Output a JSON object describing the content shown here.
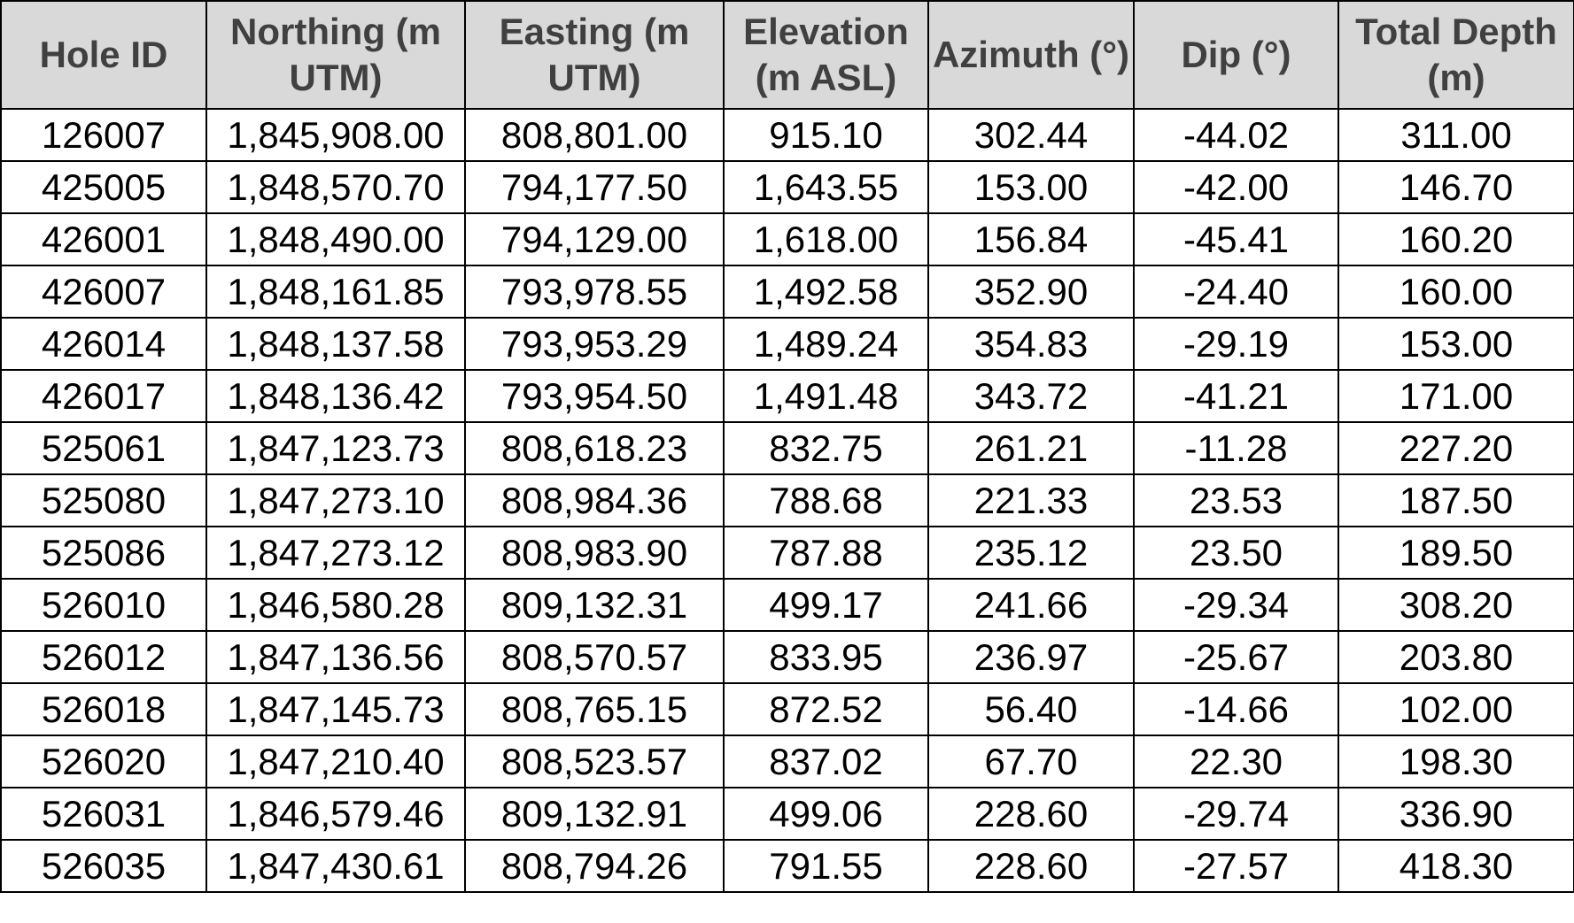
{
  "table": {
    "headers": [
      "Hole ID",
      "Northing (m UTM)",
      "Easting (m UTM)",
      "Elevation (m ASL)",
      "Azimuth (°)",
      "Dip (°)",
      "Total Depth (m)"
    ],
    "rows": [
      [
        "126007",
        "1,845,908.00",
        "808,801.00",
        "915.10",
        "302.44",
        "-44.02",
        "311.00"
      ],
      [
        "425005",
        "1,848,570.70",
        "794,177.50",
        "1,643.55",
        "153.00",
        "-42.00",
        "146.70"
      ],
      [
        "426001",
        "1,848,490.00",
        "794,129.00",
        "1,618.00",
        "156.84",
        "-45.41",
        "160.20"
      ],
      [
        "426007",
        "1,848,161.85",
        "793,978.55",
        "1,492.58",
        "352.90",
        "-24.40",
        "160.00"
      ],
      [
        "426014",
        "1,848,137.58",
        "793,953.29",
        "1,489.24",
        "354.83",
        "-29.19",
        "153.00"
      ],
      [
        "426017",
        "1,848,136.42",
        "793,954.50",
        "1,491.48",
        "343.72",
        "-41.21",
        "171.00"
      ],
      [
        "525061",
        "1,847,123.73",
        "808,618.23",
        "832.75",
        "261.21",
        "-11.28",
        "227.20"
      ],
      [
        "525080",
        "1,847,273.10",
        "808,984.36",
        "788.68",
        "221.33",
        "23.53",
        "187.50"
      ],
      [
        "525086",
        "1,847,273.12",
        "808,983.90",
        "787.88",
        "235.12",
        "23.50",
        "189.50"
      ],
      [
        "526010",
        "1,846,580.28",
        "809,132.31",
        "499.17",
        "241.66",
        "-29.34",
        "308.20"
      ],
      [
        "526012",
        "1,847,136.56",
        "808,570.57",
        "833.95",
        "236.97",
        "-25.67",
        "203.80"
      ],
      [
        "526018",
        "1,847,145.73",
        "808,765.15",
        "872.52",
        "56.40",
        "-14.66",
        "102.00"
      ],
      [
        "526020",
        "1,847,210.40",
        "808,523.57",
        "837.02",
        "67.70",
        "22.30",
        "198.30"
      ],
      [
        "526031",
        "1,846,579.46",
        "809,132.91",
        "499.06",
        "228.60",
        "-29.74",
        "336.90"
      ],
      [
        "526035",
        "1,847,430.61",
        "808,794.26",
        "791.55",
        "228.60",
        "-27.57",
        "418.30"
      ]
    ]
  }
}
